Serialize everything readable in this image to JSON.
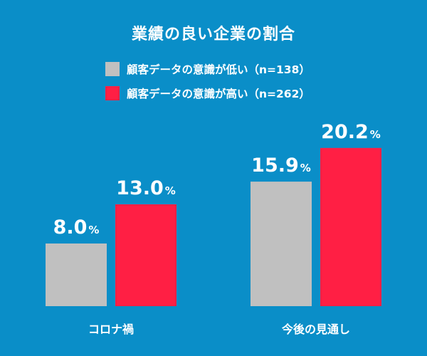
{
  "chart_data": {
    "type": "bar",
    "title": "業績の良い企業の割合",
    "xlabel": "",
    "ylabel": "",
    "unit": "%",
    "categories": [
      "コロナ禍",
      "今後の見通し"
    ],
    "series": [
      {
        "name": "顧客データの意識が低い（n=138）",
        "color": "#c0c0c0",
        "values": [
          8.0,
          15.9
        ]
      },
      {
        "name": "顧客データの意識が高い（n=262）",
        "color": "#ff1f44",
        "values": [
          13.0,
          20.2
        ]
      }
    ],
    "ylim": [
      0,
      22
    ],
    "grid": false,
    "legend_position": "top-left"
  }
}
